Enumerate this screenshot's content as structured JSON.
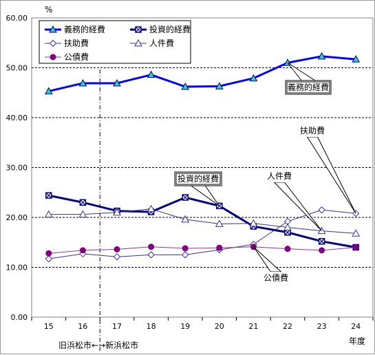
{
  "chart_data": {
    "type": "line",
    "unit_label": "%",
    "xlabel": "年度",
    "era_note": "旧浜松市←→新浜松市",
    "categories": [
      "15",
      "16",
      "17",
      "18",
      "19",
      "20",
      "21",
      "22",
      "23",
      "24"
    ],
    "ylim": [
      0,
      60
    ],
    "yticks": [
      "0.00",
      "10.00",
      "20.00",
      "30.00",
      "40.00",
      "50.00",
      "60.00"
    ],
    "grid": true,
    "legend_position": "top-left",
    "series": [
      {
        "name": "義務的経費",
        "color": "#0000ff",
        "marker": "triangle-filled",
        "fill": "#33cccc",
        "width": 3,
        "values": [
          45.3,
          46.9,
          46.9,
          48.6,
          46.2,
          46.3,
          47.9,
          51.0,
          52.3,
          51.7
        ]
      },
      {
        "name": "投資的経費",
        "color": "#000080",
        "marker": "square-x",
        "fill": "#ffffff",
        "width": 3,
        "values": [
          24.4,
          23.0,
          21.3,
          21.1,
          24.0,
          22.3,
          18.2,
          17.0,
          15.2,
          14.0
        ]
      },
      {
        "name": "扶助費",
        "color": "#3333aa",
        "marker": "diamond-open",
        "fill": "#ffffff",
        "width": 1,
        "values": [
          11.7,
          12.7,
          12.1,
          12.5,
          12.5,
          13.5,
          14.6,
          19.2,
          21.5,
          20.8
        ]
      },
      {
        "name": "人件費",
        "color": "#333399",
        "marker": "triangle-open",
        "fill": "#ffffff",
        "width": 1,
        "values": [
          20.6,
          20.6,
          21.0,
          21.7,
          19.6,
          18.7,
          18.8,
          18.0,
          17.3,
          16.8
        ]
      },
      {
        "name": "公債費",
        "color": "#993399",
        "marker": "circle-filled",
        "fill": "#800080",
        "width": 1,
        "values": [
          12.8,
          13.4,
          13.6,
          14.1,
          13.8,
          13.9,
          14.1,
          13.7,
          13.4,
          14.0
        ]
      }
    ],
    "callouts": [
      {
        "text": "義務的経費",
        "series": "義務的経費",
        "targets": [
          22
        ],
        "boxed": true,
        "doubleBorder": true
      },
      {
        "text": "扶助費",
        "series": "扶助費",
        "targets": [
          24
        ],
        "boxed": false,
        "doubleBorder": false
      },
      {
        "text": "投資的経費",
        "series": "投資的経費",
        "targets": [
          20
        ],
        "boxed": true,
        "doubleBorder": true
      },
      {
        "text": "人件費",
        "series": "人件費",
        "targets": [
          23
        ],
        "boxed": false,
        "doubleBorder": false
      },
      {
        "text": "公債費",
        "series": "公債費",
        "targets": [
          21
        ],
        "boxed": false,
        "doubleBorder": false
      }
    ]
  }
}
